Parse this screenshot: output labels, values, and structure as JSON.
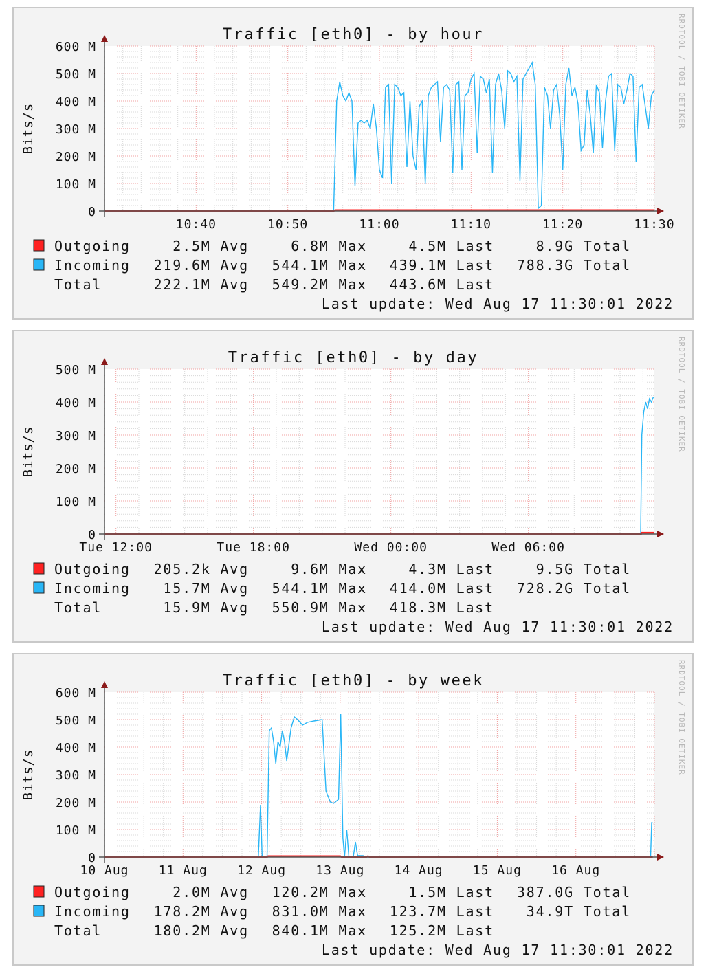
{
  "y_label": "Bits/s",
  "watermark": "RRDTOOL / TOBI OETIKER",
  "colors": {
    "outgoing": "#ff2222",
    "incoming": "#29b6f6",
    "axis": "#8b1a1a",
    "grid_major": "#f0a0a0",
    "grid_minor": "#d8d8d8",
    "background": "#f3f3f3",
    "plot": "#ffffff"
  },
  "chart_data": [
    {
      "type": "line",
      "title": "Traffic [eth0] - by hour",
      "ylabel": "Bits/s",
      "ylim": [
        0,
        600
      ],
      "yticks": [
        {
          "v": 0,
          "label": "0"
        },
        {
          "v": 100,
          "label": "100 M"
        },
        {
          "v": 200,
          "label": "200 M"
        },
        {
          "v": 300,
          "label": "300 M"
        },
        {
          "v": 400,
          "label": "400 M"
        },
        {
          "v": 500,
          "label": "500 M"
        },
        {
          "v": 600,
          "label": "600 M"
        }
      ],
      "xlim": [
        "2022-08-17T10:30:00",
        "2022-08-17T11:30:00"
      ],
      "xticks": [
        {
          "t": "2022-08-17T10:40:00",
          "label": "10:40"
        },
        {
          "t": "2022-08-17T10:50:00",
          "label": "10:50"
        },
        {
          "t": "2022-08-17T11:00:00",
          "label": "11:00"
        },
        {
          "t": "2022-08-17T11:10:00",
          "label": "11:10"
        },
        {
          "t": "2022-08-17T11:20:00",
          "label": "11:20"
        },
        {
          "t": "2022-08-17T11:30:00",
          "label": "11:30"
        }
      ],
      "x_major_minutes": 10,
      "x_minor_minutes": 2,
      "y_minor": 20,
      "series": [
        {
          "name": "Incoming",
          "color": "#29b6f6",
          "points": [
            [
              "2022-08-17T10:30:00",
              0
            ],
            [
              "2022-08-17T10:55:00",
              0
            ]
          ],
          "regular": {
            "start": "2022-08-17T10:55:00",
            "end": "2022-08-17T11:30:00",
            "values": [
              0,
              400,
              470,
              420,
              400,
              430,
              400,
              90,
              320,
              330,
              320,
              330,
              300,
              390,
              300,
              150,
              120,
              450,
              460,
              100,
              460,
              450,
              420,
              430,
              160,
              400,
              200,
              150,
              380,
              400,
              100,
              420,
              450,
              460,
              470,
              250,
              450,
              460,
              440,
              140,
              460,
              470,
              150,
              420,
              430,
              480,
              500,
              210,
              490,
              480,
              430,
              480,
              140,
              460,
              500,
              440,
              300,
              510,
              500,
              470,
              490,
              110,
              480,
              500,
              520,
              540,
              460,
              10,
              20,
              450,
              420,
              300,
              440,
              460,
              350,
              150,
              460,
              520,
              420,
              450,
              390,
              220,
              240,
              440,
              350,
              210,
              460,
              430,
              230,
              400,
              490,
              500,
              220,
              460,
              450,
              390,
              440,
              500,
              490,
              180,
              450,
              460,
              380,
              300,
              420,
              440
            ]
          }
        },
        {
          "name": "Outgoing",
          "color": "#ff2222",
          "points": [
            [
              "2022-08-17T10:30:00",
              0
            ],
            [
              "2022-08-17T10:55:00",
              0
            ],
            [
              "2022-08-17T10:55:10",
              3
            ],
            [
              "2022-08-17T11:30:00",
              3
            ]
          ]
        }
      ],
      "legend": [
        {
          "swatch": "#ff2222",
          "label": "Outgoing",
          "cells": [
            "2.5M Avg",
            "6.8M Max",
            "4.5M Last",
            "8.9G Total"
          ]
        },
        {
          "swatch": "#29b6f6",
          "label": "Incoming",
          "cells": [
            "219.6M Avg",
            "544.1M Max",
            "439.1M Last",
            "788.3G Total"
          ]
        },
        {
          "swatch": "",
          "label": "Total",
          "cells": [
            "222.1M Avg",
            "549.2M Max",
            "443.6M Last",
            ""
          ]
        }
      ],
      "last_update": "Last update: Wed Aug 17 11:30:01 2022"
    },
    {
      "type": "line",
      "title": "Traffic [eth0] - by day",
      "ylabel": "Bits/s",
      "ylim": [
        0,
        500
      ],
      "yticks": [
        {
          "v": 0,
          "label": "0"
        },
        {
          "v": 100,
          "label": "100 M"
        },
        {
          "v": 200,
          "label": "200 M"
        },
        {
          "v": 300,
          "label": "300 M"
        },
        {
          "v": 400,
          "label": "400 M"
        },
        {
          "v": 500,
          "label": "500 M"
        }
      ],
      "xlim": [
        "2022-08-16T11:30:00",
        "2022-08-17T11:30:00"
      ],
      "xticks": [
        {
          "t": "2022-08-16T12:00:00",
          "label": "Tue 12:00"
        },
        {
          "t": "2022-08-16T18:00:00",
          "label": "Tue 18:00"
        },
        {
          "t": "2022-08-17T00:00:00",
          "label": "Wed 00:00"
        },
        {
          "t": "2022-08-17T06:00:00",
          "label": "Wed 06:00"
        }
      ],
      "x_major_minutes": 360,
      "x_minor_minutes": 60,
      "y_minor": 20,
      "series": [
        {
          "name": "Incoming",
          "color": "#29b6f6",
          "points": [
            [
              "2022-08-16T11:30:00",
              0
            ],
            [
              "2022-08-17T10:54:00",
              0
            ],
            [
              "2022-08-17T10:57:00",
              300
            ],
            [
              "2022-08-17T11:02:00",
              370
            ],
            [
              "2022-08-17T11:07:00",
              400
            ],
            [
              "2022-08-17T11:12:00",
              380
            ],
            [
              "2022-08-17T11:17:00",
              410
            ],
            [
              "2022-08-17T11:22:00",
              400
            ],
            [
              "2022-08-17T11:27:00",
              415
            ],
            [
              "2022-08-17T11:30:00",
              414
            ]
          ]
        },
        {
          "name": "Outgoing",
          "color": "#ff2222",
          "points": [
            [
              "2022-08-16T11:30:00",
              0
            ],
            [
              "2022-08-17T10:55:00",
              0
            ],
            [
              "2022-08-17T10:56:00",
              4
            ],
            [
              "2022-08-17T11:30:00",
              4
            ]
          ]
        }
      ],
      "legend": [
        {
          "swatch": "#ff2222",
          "label": "Outgoing",
          "cells": [
            "205.2k Avg",
            "9.6M Max",
            "4.3M Last",
            "9.5G Total"
          ]
        },
        {
          "swatch": "#29b6f6",
          "label": "Incoming",
          "cells": [
            "15.7M Avg",
            "544.1M Max",
            "414.0M Last",
            "728.2G Total"
          ]
        },
        {
          "swatch": "",
          "label": "Total",
          "cells": [
            "15.9M Avg",
            "550.9M Max",
            "418.3M Last",
            ""
          ]
        }
      ],
      "last_update": "Last update: Wed Aug 17 11:30:01 2022"
    },
    {
      "type": "line",
      "title": "Traffic [eth0] - by week",
      "ylabel": "Bits/s",
      "ylim": [
        0,
        600
      ],
      "yticks": [
        {
          "v": 0,
          "label": "0"
        },
        {
          "v": 100,
          "label": "100 M"
        },
        {
          "v": 200,
          "label": "200 M"
        },
        {
          "v": 300,
          "label": "300 M"
        },
        {
          "v": 400,
          "label": "400 M"
        },
        {
          "v": 500,
          "label": "500 M"
        },
        {
          "v": 600,
          "label": "600 M"
        }
      ],
      "xlim": [
        "2022-08-10T12:00:00",
        "2022-08-17T12:00:00"
      ],
      "xticks": [
        {
          "t": "2022-08-10T12:00:00",
          "label": "10 Aug"
        },
        {
          "t": "2022-08-11T12:00:00",
          "label": "11 Aug"
        },
        {
          "t": "2022-08-12T12:00:00",
          "label": "12 Aug"
        },
        {
          "t": "2022-08-13T12:00:00",
          "label": "13 Aug"
        },
        {
          "t": "2022-08-14T12:00:00",
          "label": "14 Aug"
        },
        {
          "t": "2022-08-15T12:00:00",
          "label": "15 Aug"
        },
        {
          "t": "2022-08-16T12:00:00",
          "label": "16 Aug"
        }
      ],
      "x_major_minutes": 1440,
      "x_major_offset_minutes": 720,
      "x_minor_minutes": 360,
      "y_minor": 20,
      "series": [
        {
          "name": "Incoming",
          "color": "#29b6f6",
          "points": [
            [
              "2022-08-10T12:00:00",
              0
            ],
            [
              "2022-08-12T11:00:00",
              0
            ],
            [
              "2022-08-12T11:40:00",
              190
            ],
            [
              "2022-08-12T12:10:00",
              0
            ],
            [
              "2022-08-12T13:40:00",
              0
            ],
            [
              "2022-08-12T14:20:00",
              460
            ],
            [
              "2022-08-12T15:00:00",
              470
            ],
            [
              "2022-08-12T15:40:00",
              420
            ],
            [
              "2022-08-12T16:20:00",
              340
            ],
            [
              "2022-08-12T17:00:00",
              420
            ],
            [
              "2022-08-12T17:40:00",
              400
            ],
            [
              "2022-08-12T18:20:00",
              460
            ],
            [
              "2022-08-12T19:00:00",
              420
            ],
            [
              "2022-08-12T19:40:00",
              350
            ],
            [
              "2022-08-12T20:20:00",
              410
            ],
            [
              "2022-08-12T21:00:00",
              470
            ],
            [
              "2022-08-12T22:00:00",
              510
            ],
            [
              "2022-08-12T23:00:00",
              500
            ],
            [
              "2022-08-13T00:30:00",
              480
            ],
            [
              "2022-08-13T02:00:00",
              490
            ],
            [
              "2022-08-13T04:00:00",
              495
            ],
            [
              "2022-08-13T06:30:00",
              500
            ],
            [
              "2022-08-13T07:40:00",
              240
            ],
            [
              "2022-08-13T09:00:00",
              200
            ],
            [
              "2022-08-13T10:00:00",
              195
            ],
            [
              "2022-08-13T11:30:00",
              210
            ],
            [
              "2022-08-13T12:10:00",
              520
            ],
            [
              "2022-08-13T12:50:00",
              70
            ],
            [
              "2022-08-13T13:20:00",
              0
            ],
            [
              "2022-08-13T14:00:00",
              100
            ],
            [
              "2022-08-13T14:40:00",
              0
            ],
            [
              "2022-08-13T16:00:00",
              0
            ],
            [
              "2022-08-13T16:40:00",
              55
            ],
            [
              "2022-08-13T17:20:00",
              5
            ],
            [
              "2022-08-13T19:00:00",
              5
            ],
            [
              "2022-08-13T19:40:00",
              0
            ],
            [
              "2022-08-17T10:50:00",
              0
            ],
            [
              "2022-08-17T11:10:00",
              125
            ],
            [
              "2022-08-17T11:30:00",
              124
            ]
          ]
        },
        {
          "name": "Outgoing",
          "color": "#ff2222",
          "points": [
            [
              "2022-08-10T12:00:00",
              0
            ],
            [
              "2022-08-12T13:40:00",
              0
            ],
            [
              "2022-08-12T14:00:00",
              3
            ],
            [
              "2022-08-13T12:00:00",
              3
            ],
            [
              "2022-08-13T12:30:00",
              0
            ],
            [
              "2022-08-13T20:00:00",
              0
            ],
            [
              "2022-08-13T20:30:00",
              3
            ],
            [
              "2022-08-13T21:00:00",
              0
            ],
            [
              "2022-08-17T11:30:00",
              0
            ]
          ]
        }
      ],
      "legend": [
        {
          "swatch": "#ff2222",
          "label": "Outgoing",
          "cells": [
            "2.0M Avg",
            "120.2M Max",
            "1.5M Last",
            "387.0G Total"
          ]
        },
        {
          "swatch": "#29b6f6",
          "label": "Incoming",
          "cells": [
            "178.2M Avg",
            "831.0M Max",
            "123.7M Last",
            "34.9T Total"
          ]
        },
        {
          "swatch": "",
          "label": "Total",
          "cells": [
            "180.2M Avg",
            "840.1M Max",
            "125.2M Last",
            ""
          ]
        }
      ],
      "last_update": "Last update: Wed Aug 17 11:30:01 2022"
    }
  ]
}
